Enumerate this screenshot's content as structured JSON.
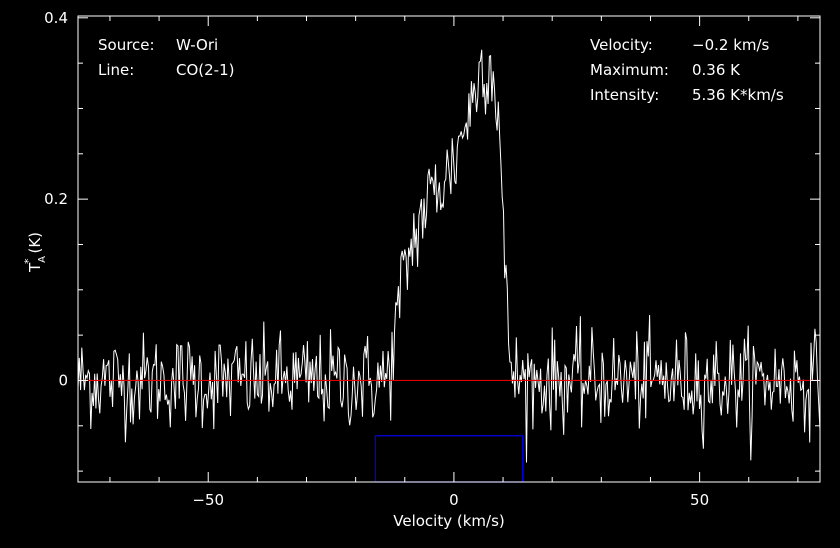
{
  "chart_data": {
    "type": "line",
    "xlabel": "Velocity (km/s)",
    "ylabel": "T*A (K)",
    "xlim": [
      -76.5,
      74.5
    ],
    "ylim": [
      -0.112,
      0.402
    ],
    "xticks": [
      -50,
      0,
      50
    ],
    "xtick_labels": [
      "−50",
      "0",
      "50"
    ],
    "yticks": [
      0,
      0.2,
      0.4
    ],
    "ytick_labels": [
      "0",
      "0.2",
      "0.4"
    ],
    "baseline": 0,
    "window": {
      "x0": -16,
      "x1": 14,
      "y0": -0.112,
      "y1": -0.061
    },
    "series": [
      {
        "profile_knots": [
          [
            -76.5,
            0
          ],
          [
            -14,
            0
          ],
          [
            -13,
            0.01
          ],
          [
            -12,
            0.05
          ],
          [
            -11,
            0.09
          ],
          [
            -10,
            0.12
          ],
          [
            -8,
            0.16
          ],
          [
            -6,
            0.19
          ],
          [
            -4,
            0.21
          ],
          [
            -2,
            0.22
          ],
          [
            0,
            0.24
          ],
          [
            2,
            0.28
          ],
          [
            4,
            0.31
          ],
          [
            5,
            0.34
          ],
          [
            6,
            0.35
          ],
          [
            7,
            0.35
          ],
          [
            8,
            0.34
          ],
          [
            9,
            0.3
          ],
          [
            9.5,
            0.25
          ],
          [
            10,
            0.17
          ],
          [
            10.5,
            0.1
          ],
          [
            11,
            0.05
          ],
          [
            12,
            0.01
          ],
          [
            13,
            0
          ],
          [
            74.5,
            0
          ]
        ],
        "rms_noise": 0.026,
        "samples": 580
      }
    ],
    "colors": {
      "spectrum": "#ffffff",
      "baseline": "#e00000",
      "window": "#0000ee",
      "axes": "#ffffff"
    }
  },
  "annotations": {
    "source_label": "Source:",
    "source_value": "W-Ori",
    "line_label": "Line:",
    "line_value": "CO(2-1)",
    "velocity_label": "Velocity:",
    "velocity_value": "−0.2 km/s",
    "maximum_label": "Maximum:",
    "maximum_value": "0.36 K",
    "intensity_label": "Intensity:",
    "intensity_value": "5.36 K*km/s"
  }
}
